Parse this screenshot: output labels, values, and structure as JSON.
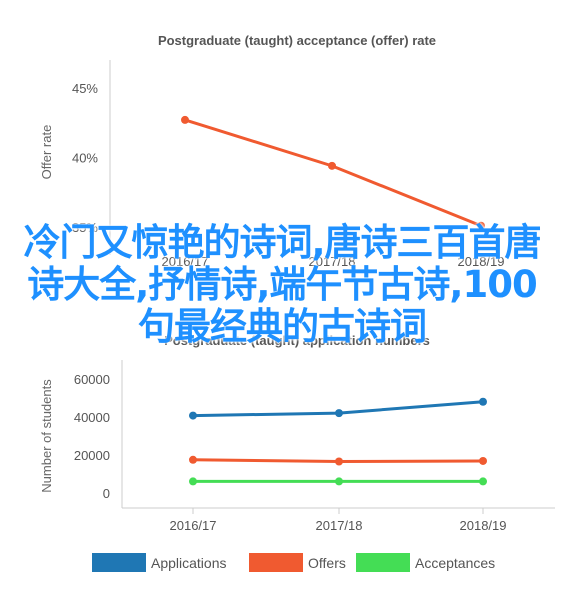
{
  "overlay_text": "冷门又惊艳的诗词,唐诗三百首唐诗大全,抒情诗,端午节古诗,100句最经典的古诗词",
  "chart_data": [
    {
      "type": "line",
      "title": "Postgraduate (taught) acceptance (offer) rate",
      "ylabel": "Offer rate",
      "xlabel": "",
      "categories": [
        "2016/17",
        "2017/18",
        "2018/19"
      ],
      "series": [
        {
          "values": [
            42.7,
            39.4,
            35.1
          ],
          "color": "#f05a30"
        }
      ],
      "yticks": [
        "35%",
        "40%",
        "45%"
      ],
      "ylim": [
        33,
        47
      ]
    },
    {
      "type": "line",
      "title": "Postgraduate (taught) application numbers",
      "ylabel": "Number of students",
      "xlabel": "",
      "categories": [
        "2016/17",
        "2017/18",
        "2018/19"
      ],
      "series": [
        {
          "name": "Applications",
          "values": [
            40700,
            42000,
            48000
          ],
          "color": "#1f77b4"
        },
        {
          "name": "Offers",
          "values": [
            17400,
            16500,
            16800
          ],
          "color": "#f05a30"
        },
        {
          "name": "Acceptances",
          "values": [
            6000,
            6000,
            6000
          ],
          "color": "#44dd55"
        }
      ],
      "yticks": [
        "0",
        "20000",
        "40000",
        "60000"
      ],
      "ylim": [
        -8000,
        70000
      ]
    }
  ]
}
